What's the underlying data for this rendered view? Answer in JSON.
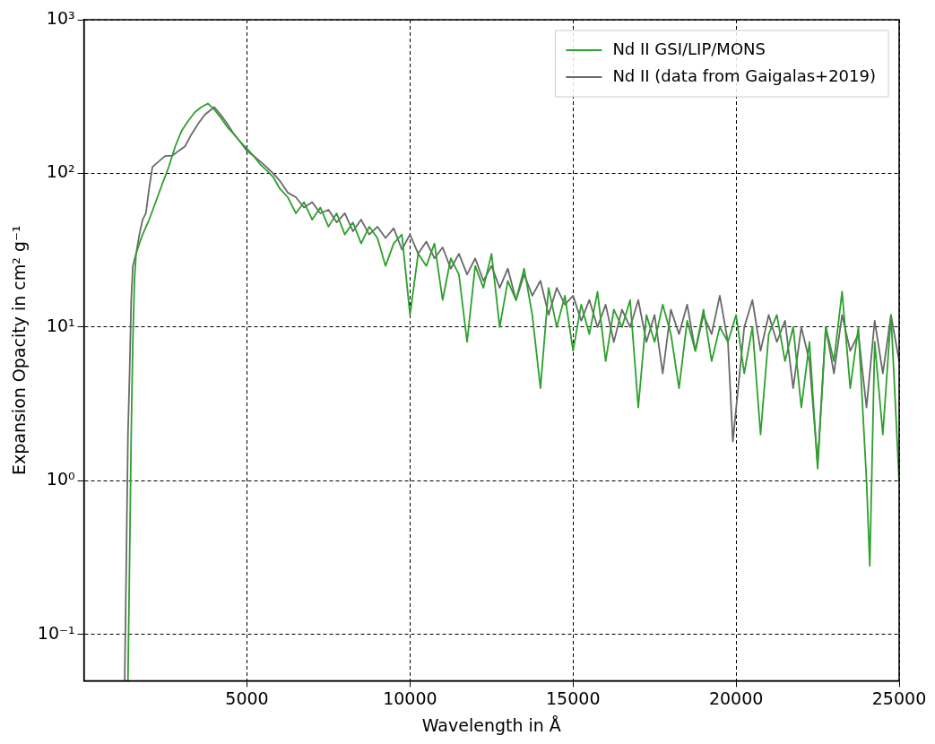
{
  "chart_data": {
    "type": "line",
    "xlabel": "Wavelength in Å",
    "ylabel": "Expansion Opacity in cm² g⁻¹",
    "xlim": [
      0,
      25000
    ],
    "xticks": [
      5000,
      10000,
      15000,
      20000,
      25000
    ],
    "ylim": [
      0.05,
      1000
    ],
    "yticks": [
      {
        "value": 0.1,
        "label": "10⁻¹"
      },
      {
        "value": 1,
        "label": "10⁰"
      },
      {
        "value": 10,
        "label": "10¹"
      },
      {
        "value": 100,
        "label": "10²"
      },
      {
        "value": 1000,
        "label": "10³"
      }
    ],
    "log": "y",
    "grid": true,
    "legend": "top right",
    "line_style": "solid",
    "marker": "none",
    "series": [
      {
        "name": "Nd II GSI/LIP/MONS",
        "color": "#2ca02c",
        "x": [
          1350,
          1400,
          1450,
          1500,
          1550,
          1600,
          1700,
          1800,
          2000,
          2200,
          2400,
          2600,
          2800,
          3000,
          3200,
          3400,
          3600,
          3800,
          4000,
          4200,
          4400,
          4600,
          4800,
          5000,
          5200,
          5400,
          5600,
          5800,
          6000,
          6250,
          6500,
          6750,
          7000,
          7250,
          7500,
          7750,
          8000,
          8250,
          8500,
          8750,
          9000,
          9250,
          9500,
          9750,
          10000,
          10250,
          10500,
          10750,
          11000,
          11250,
          11500,
          11750,
          12000,
          12250,
          12500,
          12750,
          13000,
          13250,
          13500,
          13750,
          14000,
          14250,
          14500,
          14750,
          15000,
          15250,
          15500,
          15750,
          16000,
          16250,
          16500,
          16750,
          17000,
          17250,
          17500,
          17750,
          18000,
          18250,
          18500,
          18750,
          19000,
          19250,
          19500,
          19750,
          20000,
          20250,
          20500,
          20750,
          21000,
          21250,
          21500,
          21750,
          22000,
          22250,
          22500,
          22750,
          23000,
          23250,
          23500,
          23750,
          24000,
          24100,
          24250,
          24500,
          24750,
          25000
        ],
        "values": [
          0.05,
          0.3,
          2,
          8,
          20,
          30,
          35,
          40,
          50,
          65,
          85,
          110,
          150,
          190,
          220,
          250,
          270,
          285,
          260,
          230,
          200,
          180,
          160,
          145,
          130,
          115,
          105,
          95,
          80,
          70,
          55,
          65,
          50,
          60,
          45,
          55,
          40,
          48,
          35,
          45,
          38,
          25,
          35,
          40,
          12,
          30,
          25,
          35,
          15,
          28,
          22,
          8,
          25,
          18,
          30,
          10,
          20,
          15,
          24,
          12,
          4,
          18,
          10,
          16,
          7,
          14,
          9,
          17,
          6,
          13,
          10,
          15,
          3,
          12,
          8,
          14,
          9,
          4,
          11,
          7,
          13,
          6,
          10,
          8,
          12,
          5,
          10,
          2,
          9,
          12,
          6,
          10,
          3,
          8,
          1.2,
          10,
          6,
          17,
          4,
          10,
          1,
          0.28,
          8,
          2,
          12,
          1
        ]
      },
      {
        "name": "Nd II (data from Gaigalas+2019)",
        "color": "#696969",
        "x": [
          1250,
          1300,
          1350,
          1400,
          1450,
          1500,
          1600,
          1700,
          1800,
          1900,
          2000,
          2100,
          2300,
          2500,
          2700,
          2900,
          3100,
          3300,
          3500,
          3700,
          3900,
          4000,
          4200,
          4400,
          4600,
          4800,
          5000,
          5200,
          5400,
          5600,
          5800,
          6000,
          6250,
          6500,
          6750,
          7000,
          7250,
          7500,
          7750,
          8000,
          8250,
          8500,
          8750,
          9000,
          9250,
          9500,
          9750,
          10000,
          10250,
          10500,
          10750,
          11000,
          11250,
          11500,
          11750,
          12000,
          12250,
          12500,
          12750,
          13000,
          13250,
          13500,
          13750,
          14000,
          14250,
          14500,
          14750,
          15000,
          15250,
          15500,
          15750,
          16000,
          16250,
          16500,
          16750,
          17000,
          17250,
          17500,
          17750,
          18000,
          18250,
          18500,
          18750,
          19000,
          19250,
          19500,
          19750,
          19900,
          20250,
          20500,
          20750,
          21000,
          21250,
          21500,
          21750,
          22000,
          22250,
          22500,
          22750,
          23000,
          23250,
          23500,
          23750,
          24000,
          24250,
          24500,
          24750,
          25000
        ],
        "values": [
          0.05,
          0.3,
          2,
          5,
          15,
          25,
          30,
          40,
          50,
          55,
          80,
          110,
          120,
          130,
          130,
          140,
          150,
          180,
          210,
          240,
          260,
          270,
          240,
          210,
          180,
          160,
          140,
          130,
          120,
          110,
          100,
          90,
          75,
          70,
          60,
          65,
          55,
          58,
          48,
          55,
          42,
          50,
          40,
          45,
          38,
          44,
          32,
          40,
          30,
          36,
          28,
          33,
          24,
          30,
          22,
          28,
          20,
          25,
          18,
          24,
          15,
          22,
          16,
          20,
          12,
          18,
          14,
          16,
          11,
          15,
          10,
          14,
          8,
          13,
          10,
          15,
          8,
          12,
          5,
          13,
          9,
          14,
          7,
          12,
          9,
          16,
          8,
          1.8,
          10,
          15,
          7,
          12,
          8,
          11,
          4,
          10,
          6,
          1.3,
          10,
          5,
          12,
          7,
          9,
          3,
          11,
          5,
          12,
          6
        ]
      }
    ]
  }
}
